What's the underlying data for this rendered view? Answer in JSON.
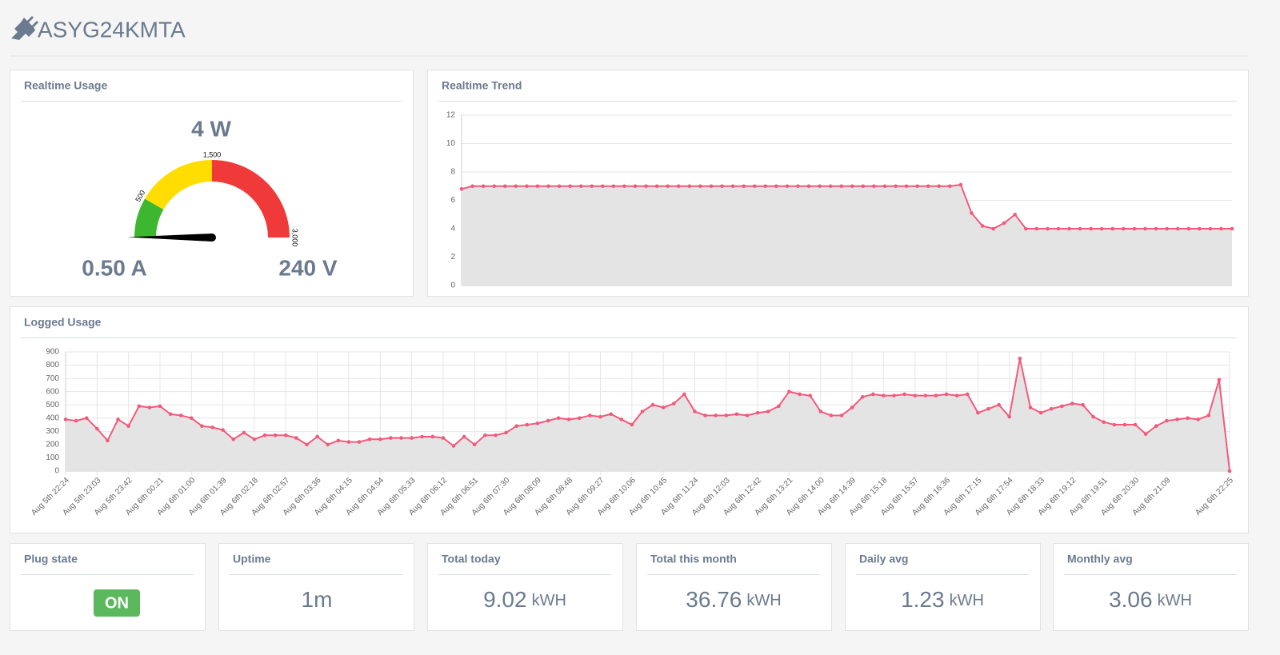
{
  "header": {
    "title": "ASYG24KMTA"
  },
  "chart_data": [
    {
      "type": "gauge",
      "title": "Realtime Usage",
      "value": 4,
      "value_label": "4 W",
      "current": "0.50 A",
      "voltage": "240 V",
      "min": 0,
      "max": 3000,
      "bands": [
        {
          "from": 0,
          "to": 500,
          "color": "#3cb72f"
        },
        {
          "from": 500,
          "to": 1500,
          "color": "#ffdd00"
        },
        {
          "from": 1500,
          "to": 3000,
          "color": "#f03a3a"
        }
      ],
      "ticks": [
        500,
        {
          "value": 1500,
          "label": "1,500"
        },
        {
          "value": 3000,
          "label": "3,000"
        }
      ]
    },
    {
      "type": "line",
      "title": "Realtime Trend",
      "color": "#f25a7c",
      "fill": "#e4e4e4",
      "values": [
        6.8,
        7,
        7,
        7,
        7,
        7,
        7,
        7,
        7,
        7,
        7,
        7,
        7,
        7,
        7,
        7,
        7,
        7,
        7,
        7,
        7,
        7,
        7,
        7,
        7,
        7,
        7,
        7,
        7,
        7,
        7,
        7,
        7,
        7,
        7,
        7,
        7,
        7,
        7,
        7,
        7,
        7,
        7,
        7,
        7,
        7,
        7.1,
        5.1,
        4.2,
        4,
        4.4,
        5,
        4,
        4,
        4,
        4,
        4,
        4,
        4,
        4,
        4,
        4,
        4,
        4,
        4,
        4,
        4,
        4,
        4,
        4,
        4,
        4
      ],
      "ylim": [
        0,
        12
      ],
      "yticks": [
        0,
        2,
        4,
        6,
        8,
        10,
        12
      ],
      "grid": true,
      "xgrid": false
    },
    {
      "type": "line",
      "title": "Logged Usage",
      "color": "#f25a7c",
      "fill": "#e4e4e4",
      "categories": [
        "Aug 5th 22:24",
        null,
        null,
        "Aug 5th 23:03",
        null,
        null,
        "Aug 5th 23:42",
        null,
        null,
        "Aug 6th 00:21",
        null,
        null,
        "Aug 6th 01:00",
        null,
        null,
        "Aug 6th 01:39",
        null,
        null,
        "Aug 6th 02:18",
        null,
        null,
        "Aug 6th 02:57",
        null,
        null,
        "Aug 6th 03:36",
        null,
        null,
        "Aug 6th 04:15",
        null,
        null,
        "Aug 6th 04:54",
        null,
        null,
        "Aug 6th 05:33",
        null,
        null,
        "Aug 6th 06:12",
        null,
        null,
        "Aug 6th 06:51",
        null,
        null,
        "Aug 6th 07:30",
        null,
        null,
        "Aug 6th 08:09",
        null,
        null,
        "Aug 6th 08:48",
        null,
        null,
        "Aug 6th 09:27",
        null,
        null,
        "Aug 6th 10:06",
        null,
        null,
        "Aug 6th 10:45",
        null,
        null,
        "Aug 6th 11:24",
        null,
        null,
        "Aug 6th 12:03",
        null,
        null,
        "Aug 6th 12:42",
        null,
        null,
        "Aug 6th 13:21",
        null,
        null,
        "Aug 6th 14:00",
        null,
        null,
        "Aug 6th 14:39",
        null,
        null,
        "Aug 6th 15:18",
        null,
        null,
        "Aug 6th 15:57",
        null,
        null,
        "Aug 6th 16:36",
        null,
        null,
        "Aug 6th 17:15",
        null,
        null,
        "Aug 6th 17:54",
        null,
        null,
        "Aug 6th 18:33",
        null,
        null,
        "Aug 6th 19:12",
        null,
        null,
        "Aug 6th 19:51",
        null,
        null,
        "Aug 6th 20:30",
        null,
        null,
        "Aug 6th 21:09",
        null,
        null,
        null,
        null,
        null,
        "Aug 6th 22:25"
      ],
      "values": [
        390,
        380,
        400,
        320,
        230,
        390,
        340,
        490,
        480,
        490,
        430,
        420,
        400,
        340,
        330,
        310,
        240,
        290,
        240,
        270,
        270,
        270,
        250,
        200,
        260,
        200,
        230,
        220,
        220,
        240,
        240,
        250,
        250,
        250,
        260,
        260,
        250,
        190,
        260,
        200,
        270,
        270,
        290,
        340,
        350,
        360,
        380,
        400,
        390,
        400,
        420,
        410,
        430,
        390,
        350,
        450,
        500,
        480,
        510,
        580,
        450,
        420,
        420,
        420,
        430,
        420,
        440,
        450,
        490,
        600,
        580,
        570,
        450,
        420,
        420,
        480,
        560,
        580,
        570,
        570,
        580,
        570,
        570,
        570,
        580,
        570,
        580,
        440,
        470,
        500,
        410,
        850,
        480,
        440,
        470,
        490,
        510,
        500,
        410,
        370,
        350,
        350,
        350,
        280,
        340,
        380,
        390,
        400,
        390,
        420,
        690,
        0
      ],
      "ylim": [
        0,
        900
      ],
      "yticks": [
        0,
        100,
        200,
        300,
        400,
        500,
        600,
        700,
        800,
        900
      ],
      "grid": true,
      "xgrid": true
    }
  ],
  "cards": [
    {
      "title": "Plug state",
      "value": "ON"
    },
    {
      "title": "Uptime",
      "value": "1m"
    },
    {
      "title": "Total today",
      "value": "9.02",
      "unit": "kWH"
    },
    {
      "title": "Total this month",
      "value": "36.76",
      "unit": "kWH"
    },
    {
      "title": "Daily avg",
      "value": "1.23",
      "unit": "kWH"
    },
    {
      "title": "Monthly avg",
      "value": "3.06",
      "unit": "kWH"
    }
  ]
}
